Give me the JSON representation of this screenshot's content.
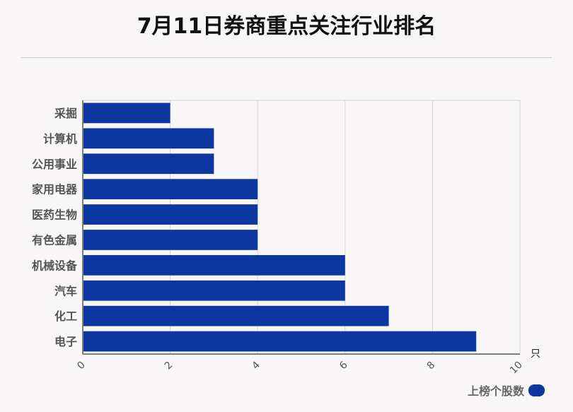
{
  "title": "7月11日券商重点关注行业排名",
  "chart_data": {
    "type": "bar",
    "orientation": "horizontal",
    "categories": [
      "采掘",
      "计算机",
      "公用事业",
      "家用电器",
      "医药生物",
      "有色金属",
      "机械设备",
      "汽车",
      "化工",
      "电子"
    ],
    "series": [
      {
        "name": "上榜个股数",
        "values": [
          2,
          3,
          3,
          4,
          4,
          4,
          6,
          6,
          7,
          9
        ],
        "color": "#0d37a0"
      }
    ],
    "x_ticks": [
      0,
      2,
      4,
      6,
      8,
      10
    ],
    "xlim": [
      0,
      10
    ],
    "x_unit": "只",
    "grid": true,
    "legend_position": "bottom-right"
  }
}
